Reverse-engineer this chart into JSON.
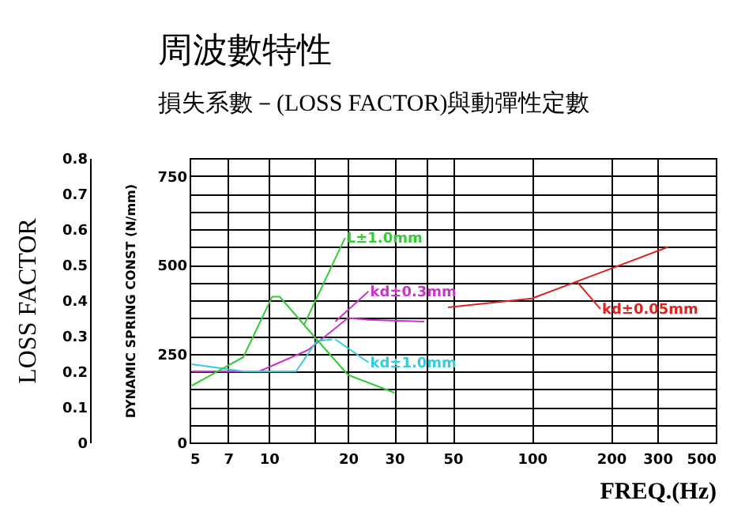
{
  "chart_data": {
    "type": "line",
    "title": "周波數特性",
    "subtitle": "損失系數－(LOSS FACTOR)與動彈性定數",
    "xlabel": "FREQ.(Hz)",
    "ylabel": "DYNAMIC SPRING CONST (N/mm)",
    "y2label": "LOSS FACTOR",
    "log": "x",
    "grid": true,
    "xlim": [
      5,
      500
    ],
    "xticks": [
      5,
      7,
      10,
      {
        "value": 15,
        "label": null
      },
      20,
      30,
      {
        "value": 40,
        "label": null
      },
      50,
      100,
      200,
      300,
      500
    ],
    "ylim": [
      0,
      800
    ],
    "yticks": [
      0,
      {
        "value": 50,
        "label": null
      },
      {
        "value": 100,
        "label": null
      },
      {
        "value": 150,
        "label": null
      },
      {
        "value": 200,
        "label": null
      },
      250,
      {
        "value": 300,
        "label": null
      },
      {
        "value": 350,
        "label": null
      },
      {
        "value": 400,
        "label": null
      },
      {
        "value": 450,
        "label": null
      },
      500,
      {
        "value": 550,
        "label": null
      },
      {
        "value": 600,
        "label": null
      },
      {
        "value": 650,
        "label": null
      },
      {
        "value": 700,
        "label": null
      },
      750,
      {
        "value": 800,
        "label": null
      }
    ],
    "y2lim": [
      0,
      0.8
    ],
    "y2ticks": [
      0,
      0.1,
      0.2,
      0.3,
      0.4,
      0.5,
      0.6,
      0.7,
      0.8
    ],
    "series": [
      {
        "color": "#33cc33",
        "axis": "y2",
        "x": [
          5.1,
          8,
          10.3,
          11,
          15.2,
          20,
          30
        ],
        "values": [
          0.16,
          0.24,
          0.41,
          0.41,
          0.29,
          0.19,
          0.14
        ]
      },
      {
        "color": "#cc33cc",
        "x": [
          5.1,
          9.2,
          14.1,
          20,
          24,
          39
        ],
        "values": [
          200,
          200,
          260,
          350,
          345,
          340
        ]
      },
      {
        "color": "#33ccdd",
        "x": [
          5.1,
          8,
          12.7,
          15.2,
          17.4
        ],
        "values": [
          220,
          200,
          200,
          285,
          290
        ]
      },
      {
        "color": "#dd2222",
        "x": [
          48,
          100,
          330
        ],
        "values": [
          380,
          405,
          550
        ]
      }
    ],
    "annotations": [
      {
        "text": "L±1.0mm",
        "x": 13.6,
        "y": 330
      },
      {
        "text": "kd±0.3mm",
        "x": 17.9,
        "y": 340
      },
      {
        "text": "kd±1.0mm",
        "x": 17.9,
        "y": 290
      },
      {
        "text": "kd±0.05mm",
        "x": 148,
        "y": 453
      }
    ]
  }
}
